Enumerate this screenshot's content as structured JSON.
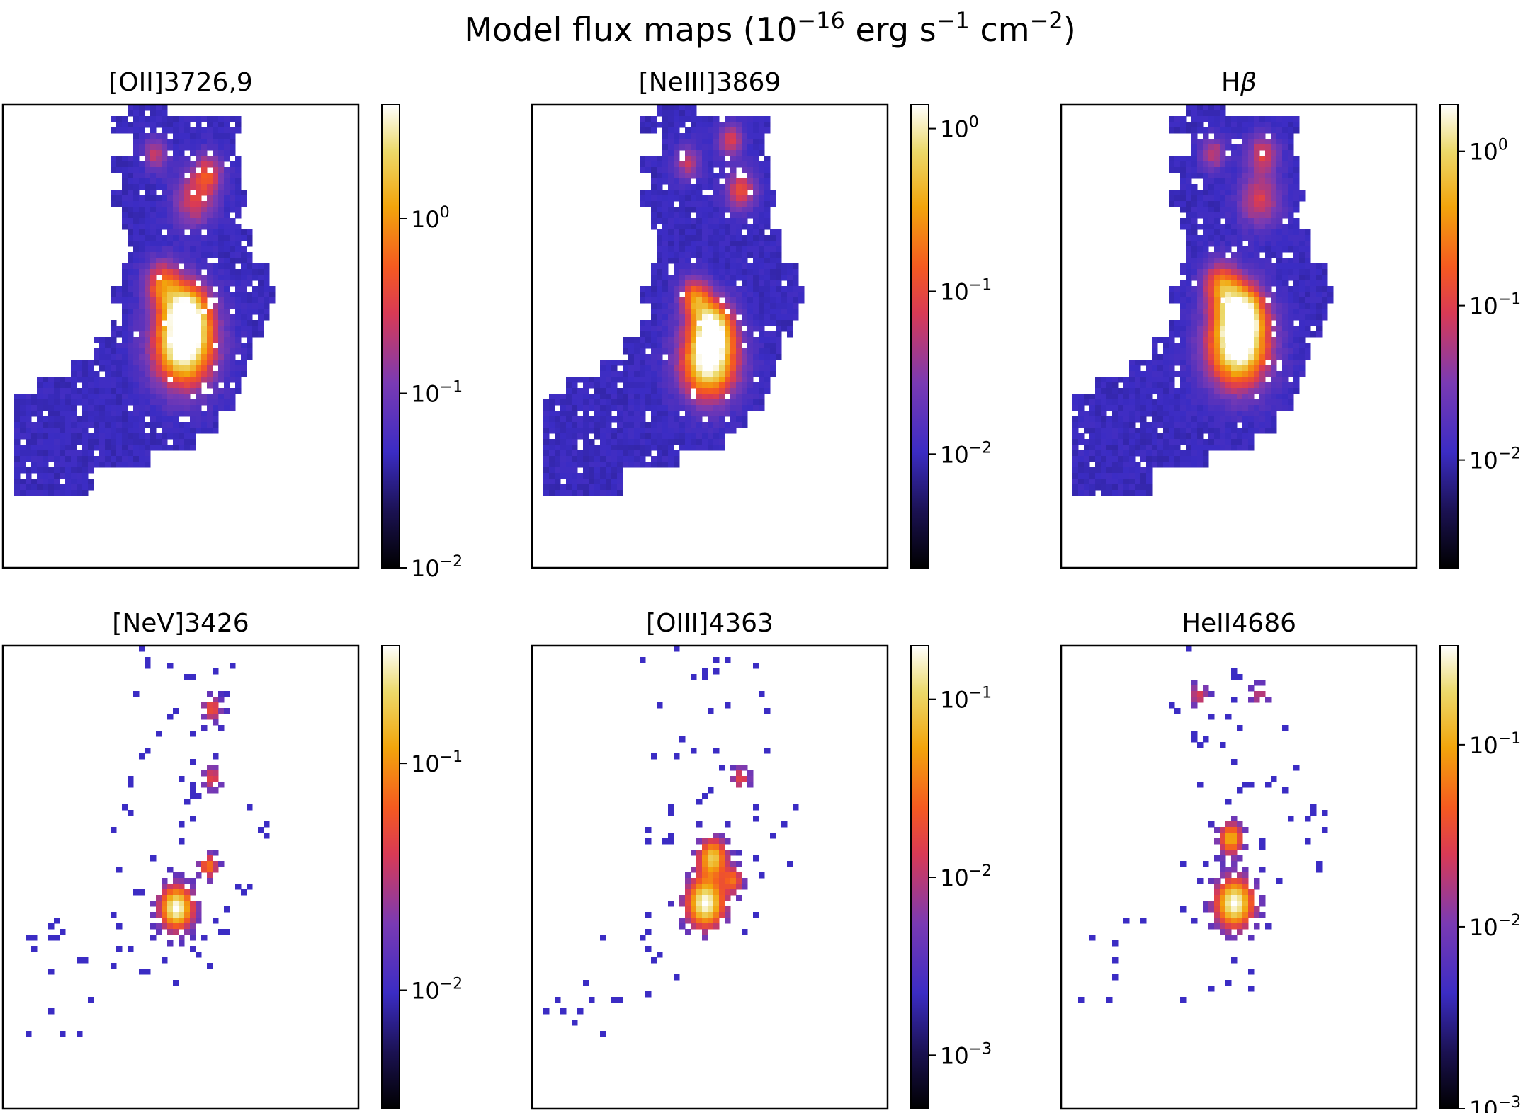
{
  "chart_data": [
    {
      "type": "heatmap",
      "suptitle_main": "Model flux maps (10",
      "suptitle_exp1": "−16",
      "suptitle_mid": " erg s",
      "suptitle_exp2": "−1",
      "suptitle_mid2": " cm",
      "suptitle_exp3": "−2",
      "suptitle_end": ")",
      "panels": [
        {
          "title": "[OII]3726,9",
          "title_italic": "",
          "scale": "log",
          "colorbar_range": [
            0.01,
            4.5
          ],
          "colorbar_ticks": [
            {
              "base": "10",
              "exp": "0",
              "value": 1
            },
            {
              "base": "10",
              "exp": "−1",
              "value": 0.1
            },
            {
              "base": "10",
              "exp": "−2",
              "value": 0.01
            }
          ],
          "blobs": [
            {
              "x": 0.5,
              "y": 0.52,
              "sigma": 0.06,
              "amp": 1.0
            },
            {
              "x": 0.51,
              "y": 0.44,
              "sigma": 0.045,
              "amp": 0.8
            },
            {
              "x": 0.44,
              "y": 0.38,
              "sigma": 0.035,
              "amp": 0.5
            },
            {
              "x": 0.53,
              "y": 0.2,
              "sigma": 0.04,
              "amp": 0.4
            },
            {
              "x": 0.57,
              "y": 0.14,
              "sigma": 0.03,
              "amp": 0.4
            },
            {
              "x": 0.42,
              "y": 0.1,
              "sigma": 0.025,
              "amp": 0.35
            }
          ]
        },
        {
          "title": "[NeIII]3869",
          "title_italic": "",
          "scale": "log",
          "colorbar_range": [
            0.002,
            1.4
          ],
          "colorbar_ticks": [
            {
              "base": "10",
              "exp": "0",
              "value": 1
            },
            {
              "base": "10",
              "exp": "−1",
              "value": 0.1
            },
            {
              "base": "10",
              "exp": "−2",
              "value": 0.01
            }
          ],
          "blobs": [
            {
              "x": 0.49,
              "y": 0.55,
              "sigma": 0.055,
              "amp": 1.0
            },
            {
              "x": 0.5,
              "y": 0.47,
              "sigma": 0.04,
              "amp": 0.75
            },
            {
              "x": 0.45,
              "y": 0.41,
              "sigma": 0.03,
              "amp": 0.55
            },
            {
              "x": 0.58,
              "y": 0.18,
              "sigma": 0.03,
              "amp": 0.45
            },
            {
              "x": 0.55,
              "y": 0.07,
              "sigma": 0.025,
              "amp": 0.4
            },
            {
              "x": 0.43,
              "y": 0.12,
              "sigma": 0.025,
              "amp": 0.35
            }
          ]
        },
        {
          "title": "H",
          "title_italic": "β",
          "scale": "log",
          "colorbar_range": [
            0.002,
            2.0
          ],
          "colorbar_ticks": [
            {
              "base": "10",
              "exp": "0",
              "value": 1
            },
            {
              "base": "10",
              "exp": "−1",
              "value": 0.1
            },
            {
              "base": "10",
              "exp": "−2",
              "value": 0.01
            }
          ],
          "blobs": [
            {
              "x": 0.49,
              "y": 0.52,
              "sigma": 0.06,
              "amp": 1.0
            },
            {
              "x": 0.5,
              "y": 0.44,
              "sigma": 0.045,
              "amp": 0.8
            },
            {
              "x": 0.44,
              "y": 0.38,
              "sigma": 0.035,
              "amp": 0.5
            },
            {
              "x": 0.55,
              "y": 0.2,
              "sigma": 0.04,
              "amp": 0.4
            },
            {
              "x": 0.56,
              "y": 0.1,
              "sigma": 0.03,
              "amp": 0.4
            },
            {
              "x": 0.42,
              "y": 0.1,
              "sigma": 0.025,
              "amp": 0.35
            }
          ]
        },
        {
          "title": "[NeV]3426",
          "title_italic": "",
          "scale": "log",
          "colorbar_range": [
            0.003,
            0.33
          ],
          "colorbar_ticks": [
            {
              "base": "10",
              "exp": "−1",
              "value": 0.1
            },
            {
              "base": "10",
              "exp": "−2",
              "value": 0.01
            }
          ],
          "blobs": [
            {
              "x": 0.48,
              "y": 0.56,
              "sigma": 0.035,
              "amp": 1.0
            },
            {
              "x": 0.57,
              "y": 0.47,
              "sigma": 0.02,
              "amp": 0.6
            },
            {
              "x": 0.58,
              "y": 0.13,
              "sigma": 0.02,
              "amp": 0.5
            },
            {
              "x": 0.58,
              "y": 0.28,
              "sigma": 0.02,
              "amp": 0.45
            }
          ]
        },
        {
          "title": "[OIII]4363",
          "title_italic": "",
          "scale": "log",
          "colorbar_range": [
            0.0005,
            0.2
          ],
          "colorbar_ticks": [
            {
              "base": "10",
              "exp": "−1",
              "value": 0.1
            },
            {
              "base": "10",
              "exp": "−2",
              "value": 0.01
            },
            {
              "base": "10",
              "exp": "−3",
              "value": 0.001
            }
          ],
          "blobs": [
            {
              "x": 0.48,
              "y": 0.55,
              "sigma": 0.04,
              "amp": 1.0
            },
            {
              "x": 0.5,
              "y": 0.45,
              "sigma": 0.03,
              "amp": 0.8
            },
            {
              "x": 0.56,
              "y": 0.5,
              "sigma": 0.02,
              "amp": 0.5
            },
            {
              "x": 0.58,
              "y": 0.28,
              "sigma": 0.02,
              "amp": 0.45
            }
          ]
        },
        {
          "title": "HeII4686",
          "title_italic": "",
          "scale": "log",
          "colorbar_range": [
            0.001,
            0.35
          ],
          "colorbar_ticks": [
            {
              "base": "10",
              "exp": "−1",
              "value": 0.1
            },
            {
              "base": "10",
              "exp": "−2",
              "value": 0.01
            },
            {
              "base": "10",
              "exp": "−3",
              "value": 0.001
            }
          ],
          "blobs": [
            {
              "x": 0.48,
              "y": 0.55,
              "sigma": 0.04,
              "amp": 1.0
            },
            {
              "x": 0.47,
              "y": 0.41,
              "sigma": 0.025,
              "amp": 0.75
            },
            {
              "x": 0.38,
              "y": 0.1,
              "sigma": 0.02,
              "amp": 0.4
            },
            {
              "x": 0.55,
              "y": 0.1,
              "sigma": 0.02,
              "amp": 0.35
            }
          ]
        }
      ]
    }
  ]
}
